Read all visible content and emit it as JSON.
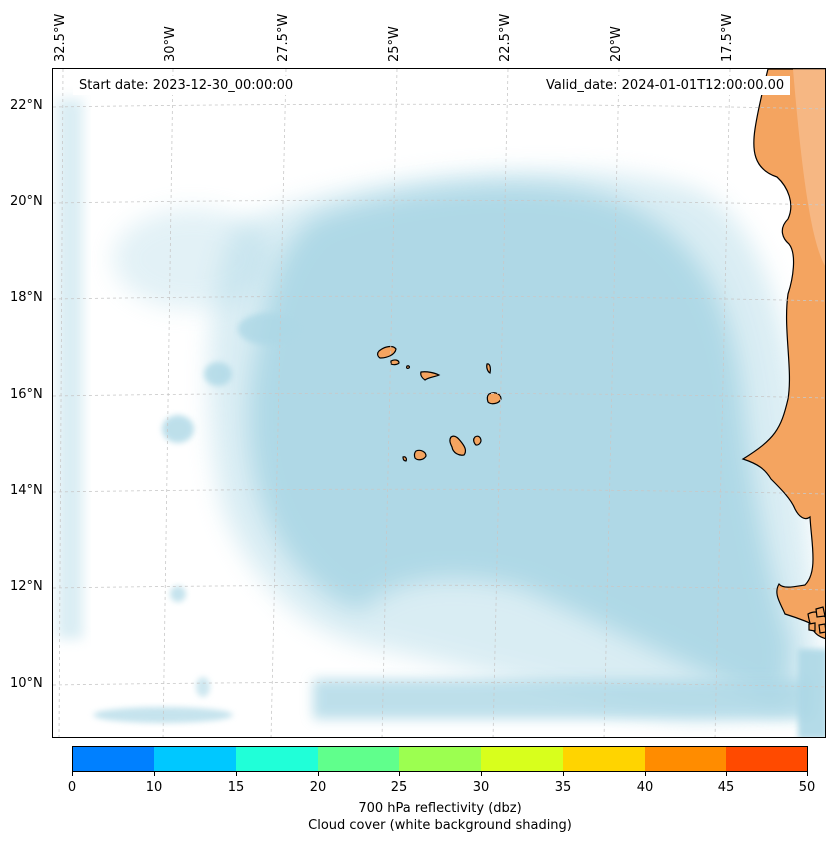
{
  "header": {
    "start_date": "Start date: 2023-12-30_00:00:00",
    "valid_date": "Valid_date: 2024-01-01T12:00:00.00"
  },
  "map": {
    "lon_labels": [
      "32.5°W",
      "30°W",
      "27.5°W",
      "25°W",
      "22.5°W",
      "20°W",
      "17.5°W"
    ],
    "lat_labels": [
      "22°N",
      "20°N",
      "18°N",
      "16°N",
      "14°N",
      "12°N",
      "10°N"
    ],
    "colors": {
      "cloud": "#add8e6",
      "land": "#f4a460",
      "coast": "#000000",
      "grid": "#c8c8c8"
    }
  },
  "colorbar": {
    "ticks": [
      "0",
      "10",
      "15",
      "20",
      "25",
      "30",
      "35",
      "40",
      "45",
      "50"
    ],
    "colors": [
      "#0080ff",
      "#00c8ff",
      "#20ffd8",
      "#60ff8c",
      "#9cff50",
      "#d8ff1c",
      "#ffd400",
      "#ff8c00",
      "#ff4a00"
    ],
    "label": "700 hPa reflectivity (dbz)",
    "sublabel": "Cloud cover (white background shading)"
  }
}
